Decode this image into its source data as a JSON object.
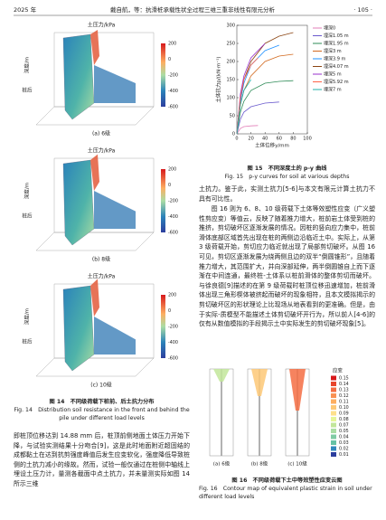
{
  "header": {
    "left": "2025 年",
    "center": "戴自航，等：抗滑桩承载性状全过程三维三重非线性有限元分析",
    "right": "· 105 ·"
  },
  "figure14": {
    "panels": [
      {
        "axis_title": "土压力/kPa",
        "y_label": "深度/m",
        "side_label": "桩后",
        "caption": "(a) 6级"
      },
      {
        "axis_title": "土压力/kPa",
        "y_label": "深度/m",
        "side_label": "桩后",
        "caption": "(b) 8级"
      },
      {
        "axis_title": "土压力/kPa",
        "y_label": "深度/m",
        "side_label": "桩后",
        "caption": "(c) 10级"
      }
    ],
    "colorbar": [
      "200",
      "0",
      "-200",
      "-400",
      "-600"
    ],
    "caption_cn": "图 14　不同级荷载下桩前、后土抗力分布",
    "caption_en": "Fig. 14　Distribution soil resistance in the front and behind the pile under different load levels"
  },
  "chart_data": {
    "type": "line",
    "x_label": "土体位移y/mm",
    "y_label": "土体抗力p/(kN·m⁻¹)",
    "xlim": [
      0,
      100
    ],
    "xticks": [
      0,
      20,
      40,
      60,
      80,
      100
    ],
    "ylim": [
      0,
      300
    ],
    "yticks": [
      0,
      50,
      100,
      150,
      200,
      250,
      300
    ],
    "series": [
      {
        "name": "埋深0",
        "color": "#e27fb8",
        "x": [
          0,
          5,
          10,
          20,
          30
        ],
        "values": [
          0,
          15,
          20,
          22,
          23
        ]
      },
      {
        "name": "埋深1.05 m",
        "color": "#6a5acd",
        "x": [
          0,
          5,
          10,
          20,
          40,
          60
        ],
        "values": [
          0,
          40,
          60,
          75,
          85,
          88
        ]
      },
      {
        "name": "埋深1.95 m",
        "color": "#2e8b57",
        "x": [
          0,
          5,
          10,
          20,
          40,
          60,
          80
        ],
        "values": [
          0,
          60,
          90,
          120,
          140,
          145,
          147
        ]
      },
      {
        "name": "埋深3 m",
        "color": "#d2691e",
        "x": [
          0,
          5,
          10,
          20,
          40,
          60,
          80
        ],
        "values": [
          0,
          80,
          120,
          160,
          200,
          215,
          220
        ]
      },
      {
        "name": "埋深3.9 m",
        "color": "#1e90ff",
        "x": [
          0,
          5,
          10,
          20,
          40,
          60
        ],
        "values": [
          0,
          90,
          140,
          190,
          230,
          245
        ]
      },
      {
        "name": "埋深4.07 m",
        "color": "#8b4513",
        "x": [
          0,
          5,
          10,
          20,
          40,
          60,
          80
        ],
        "values": [
          0,
          100,
          150,
          200,
          250,
          270,
          280
        ]
      },
      {
        "name": "埋深5 m",
        "color": "#9932cc",
        "x": [
          0,
          5,
          10,
          20,
          40
        ],
        "values": [
          0,
          110,
          160,
          210,
          250
        ]
      },
      {
        "name": "埋深5.92 m",
        "color": "#ff6347",
        "x": [
          0,
          5,
          10,
          20,
          30
        ],
        "values": [
          0,
          100,
          150,
          190,
          210
        ]
      },
      {
        "name": "埋深7 m",
        "color": "#20b2aa",
        "x": [
          0,
          5,
          10,
          20
        ],
        "values": [
          0,
          80,
          120,
          150
        ]
      }
    ]
  },
  "figure15": {
    "caption_cn": "图 15　不同深度土的 p-y 曲线",
    "caption_en": "Fig. 15　p-y curves for soil at various depths"
  },
  "figure16": {
    "legend_title": "应变",
    "legend": [
      "0.15",
      "0.14",
      "0.13",
      "0.12",
      "0.11",
      "0.10",
      "0.09",
      "0.08",
      "0.07",
      "0.05",
      "0.04",
      "0.03",
      "0.02",
      "0.01"
    ],
    "panels": [
      "(a) 6级",
      "(b) 8级",
      "(c) 10级"
    ],
    "caption_cn": "图 16　不同级荷载下土中等效塑性应变云图",
    "caption_en": "Fig. 16　Contour map of equivalent plastic strain in soil under different load levels"
  },
  "body": {
    "left": [
      "即桩顶位移达到 14.88 mm 后，桩顶前侧地面土体压力开始下降，与试验实测结果十分吻合[9]，这是此时地面附近超固结的成都黏土在达到抗剪强度峰值后发生应变软化，强度降低导致桩侧的土抗力减小的缘故。然而，试验一般仅通过在桩侧中轴线上埋设土压力计，量测各截面中点土抗力，并未量测实际如图 14 所示三维"
    ],
    "right": [
      "土抗力。鉴于此，实测土抗力[5-6]与本文有限元计算土抗力不具有可比性。",
      "图 16 则为 6、8、10 级荷载下土体等效塑性应变（广义塑性剪应变）等值云，反映了随着推力增大，桩前岩土体受到桩的推挤，剪切破坏区逐渐发展的情况。因桩的竖向应力集中，桩前滑体底部区域首先出现在桩的两侧边沿临近土中。实际上，从第 3 级荷载开始，剪切应力临近就出现了局部剪切破坏。从图 16 可见，剪切区逐渐发展为绕两侧且边的双半“倒圆锥形”，且随着推力增大，其范围扩大，并向深部延伸，两半倒圆锥自上而下逐渐在中间连通，最终桩-土体系以桩前滑体的整体剪切而破坏。与徐良德[9]描述的在第 9 级荷载时桩顶位移迅速增加，桩前滑体出现三角形楔体被挤起而破坏的现象相符，且本文模拟揭示的剪切破坏区的形状理论上比现场从地表看到的更准确。但是，由于实际-质模型不能描述土体剪切破坏开行为，所以前人[4-6]的仅有从数值模拟的手段揭示土中实际发生的剪切破坏现象[5]。"
    ]
  }
}
